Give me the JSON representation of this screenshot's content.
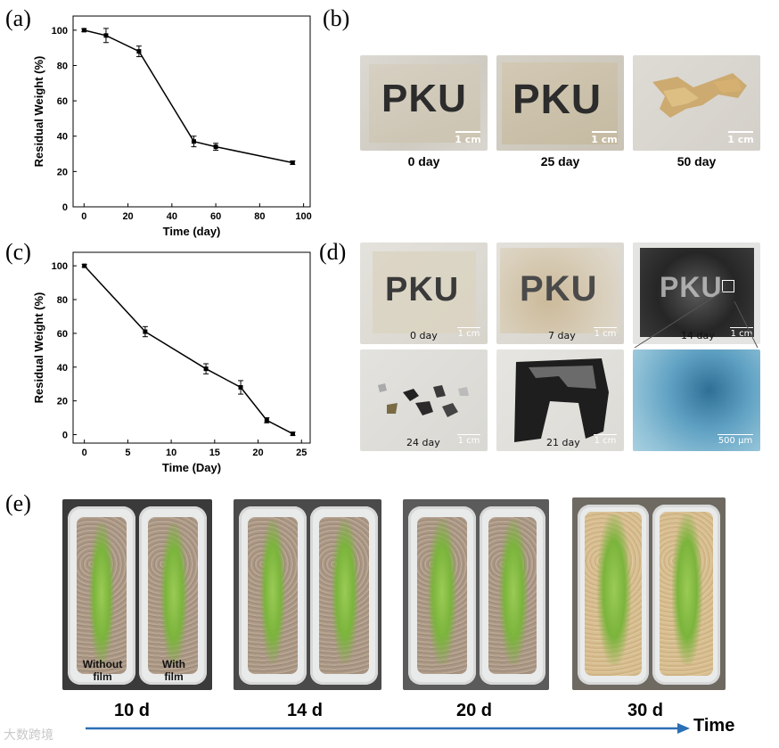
{
  "panels": {
    "a": "(a)",
    "b": "(b)",
    "c": "(c)",
    "d": "(d)",
    "e": "(e)"
  },
  "chart_data": [
    {
      "type": "line",
      "panel": "a",
      "xlabel": "Time (day)",
      "ylabel": "Residual Weight  (%)",
      "xlim": [
        -5,
        103
      ],
      "ylim": [
        0,
        108
      ],
      "xticks": [
        0,
        20,
        40,
        60,
        80,
        100
      ],
      "yticks": [
        0,
        20,
        40,
        60,
        80,
        100
      ],
      "x": [
        0,
        10,
        25,
        50,
        60,
        95
      ],
      "y": [
        100,
        97,
        88,
        37,
        34,
        25
      ],
      "err": [
        0.8,
        4,
        3,
        3,
        2,
        1
      ],
      "color": "#000000"
    },
    {
      "type": "line",
      "panel": "c",
      "xlabel": "Time (Day)",
      "ylabel": "Residual Weight (%)",
      "xlim": [
        -1.3,
        26
      ],
      "ylim": [
        -5,
        108
      ],
      "xticks": [
        0,
        5,
        10,
        15,
        20,
        25
      ],
      "yticks": [
        0,
        20,
        40,
        60,
        80,
        100
      ],
      "x": [
        0,
        7,
        14,
        18,
        21,
        24
      ],
      "y": [
        100,
        61,
        39,
        28,
        8.5,
        0.5
      ],
      "err": [
        0.8,
        3,
        3,
        4,
        1.5,
        1
      ],
      "color": "#000000"
    }
  ],
  "panel_b": {
    "images": [
      {
        "text": "PKU",
        "caption": "0 day",
        "scale": "1 cm"
      },
      {
        "text": "PKU",
        "caption": "25 day",
        "scale": "1 cm"
      },
      {
        "text": "",
        "caption": "50 day",
        "scale": "1 cm"
      }
    ]
  },
  "panel_d": {
    "images": [
      {
        "text": "PKU",
        "label": "0 day",
        "scale": "1 cm"
      },
      {
        "text": "PKU",
        "label": "7 day",
        "scale": "1 cm"
      },
      {
        "text": "PKU",
        "label": "14 day",
        "scale": "1 cm"
      },
      {
        "text": "",
        "label": "24 day",
        "scale": "1 cm"
      },
      {
        "text": "",
        "label": "21 day",
        "scale": "1 cm"
      },
      {
        "text": "",
        "label": "",
        "scale": "500 μm"
      }
    ]
  },
  "panel_e": {
    "pot_labels": {
      "without": "Without film",
      "with": "With film"
    },
    "days": [
      "10 d",
      "14 d",
      "20 d",
      "30 d"
    ],
    "axis_label": "Time"
  },
  "watermark": "大数跨境"
}
